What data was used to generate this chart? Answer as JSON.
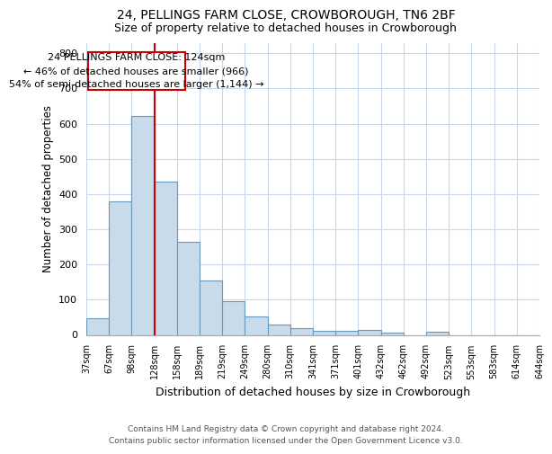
{
  "title1": "24, PELLINGS FARM CLOSE, CROWBOROUGH, TN6 2BF",
  "title2": "Size of property relative to detached houses in Crowborough",
  "xlabel": "Distribution of detached houses by size in Crowborough",
  "ylabel": "Number of detached properties",
  "footnote": "Contains HM Land Registry data © Crown copyright and database right 2024.\nContains public sector information licensed under the Open Government Licence v3.0.",
  "bin_labels": [
    "37sqm",
    "67sqm",
    "98sqm",
    "128sqm",
    "158sqm",
    "189sqm",
    "219sqm",
    "249sqm",
    "280sqm",
    "310sqm",
    "341sqm",
    "371sqm",
    "401sqm",
    "432sqm",
    "462sqm",
    "492sqm",
    "523sqm",
    "553sqm",
    "583sqm",
    "614sqm",
    "644sqm"
  ],
  "bar_values": [
    46,
    379,
    621,
    436,
    265,
    154,
    96,
    53,
    30,
    18,
    12,
    12,
    14,
    7,
    0,
    8,
    0,
    0,
    0,
    0
  ],
  "bar_color": "#c9daea",
  "bar_edge_color": "#6699bb",
  "ylim": [
    0,
    830
  ],
  "yticks": [
    0,
    100,
    200,
    300,
    400,
    500,
    600,
    700,
    800
  ],
  "property_line_color": "#cc0000",
  "annotation_text": "24 PELLINGS FARM CLOSE: 124sqm\n← 46% of detached houses are smaller (966)\n54% of semi-detached houses are larger (1,144) →",
  "background_color": "#ffffff",
  "grid_color": "#c8d8ea"
}
